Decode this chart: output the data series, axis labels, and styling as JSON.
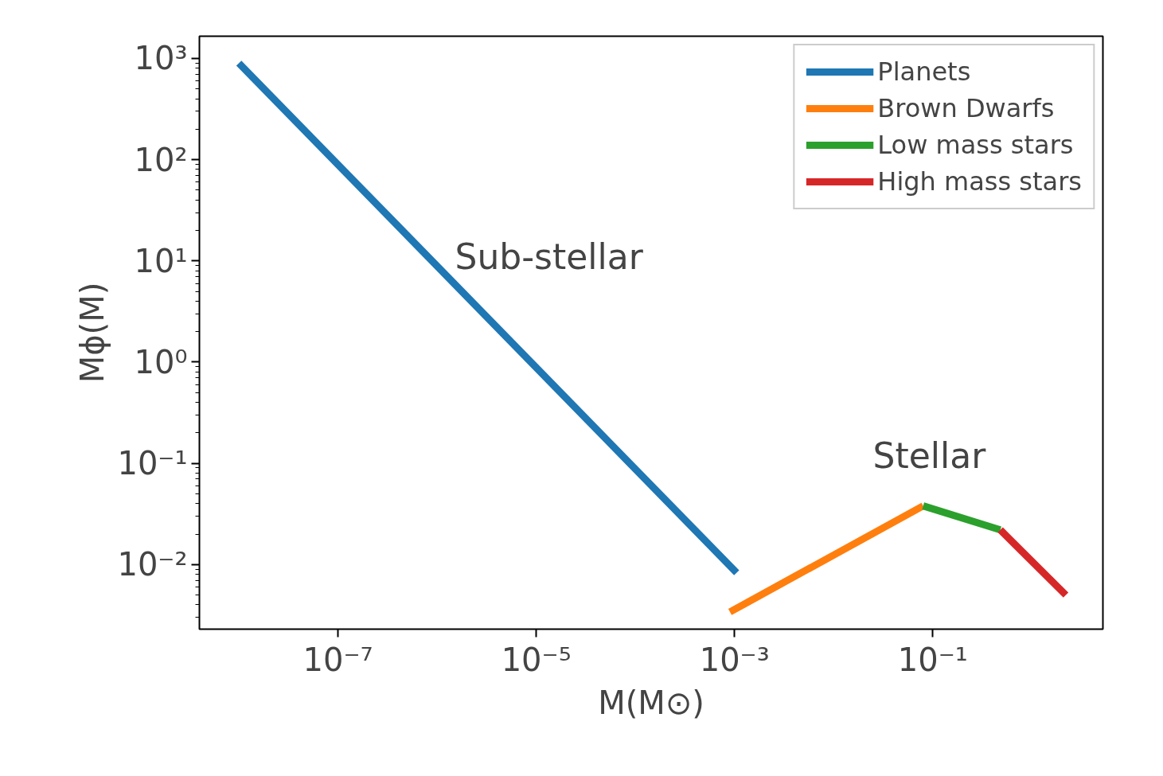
{
  "chart_data": {
    "type": "line",
    "xlabel": "M(M⊙)",
    "ylabel": "Mϕ(M)",
    "log": "xy",
    "grid": false,
    "legend": "top right",
    "line_style": "solid",
    "marker": "none",
    "xlim": [
      4e-09,
      5.2
    ],
    "ylim": [
      0.0023,
      1660
    ],
    "xticks": [
      {
        "value": 1e-07,
        "label": "10⁻⁷"
      },
      {
        "value": 1e-05,
        "label": "10⁻⁵"
      },
      {
        "value": 0.001,
        "label": "10⁻³"
      },
      {
        "value": 0.1,
        "label": "10⁻¹"
      }
    ],
    "yticks": [
      {
        "value": 0.01,
        "label": "10⁻²"
      },
      {
        "value": 0.1,
        "label": "10⁻¹"
      },
      {
        "value": 1,
        "label": "10⁰"
      },
      {
        "value": 10,
        "label": "10¹"
      },
      {
        "value": 100,
        "label": "10²"
      },
      {
        "value": 1000,
        "label": "10³"
      }
    ],
    "series": [
      {
        "name": "Planets",
        "color": "#1f77b4",
        "x": [
          1e-08,
          0.00105
        ],
        "values": [
          900,
          0.0083
        ]
      },
      {
        "name": "Brown Dwarfs",
        "color": "#ff7f0e",
        "x": [
          0.0009,
          0.08
        ],
        "values": [
          0.0034,
          0.038
        ]
      },
      {
        "name": "Low mass stars",
        "color": "#2ca02c",
        "x": [
          0.08,
          0.48
        ],
        "values": [
          0.038,
          0.022
        ]
      },
      {
        "name": "High mass stars",
        "color": "#d62728",
        "x": [
          0.48,
          2.2
        ],
        "values": [
          0.022,
          0.005
        ]
      }
    ],
    "annotations": [
      "Sub-stellar",
      "Stellar"
    ]
  }
}
